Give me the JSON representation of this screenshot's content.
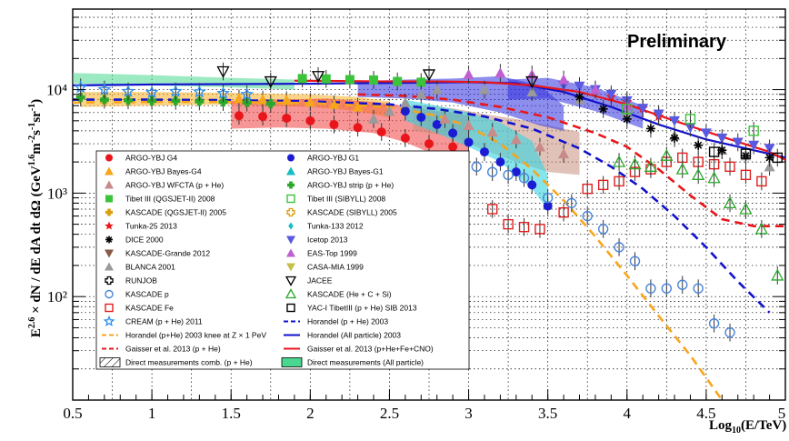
{
  "chart_data": {
    "type": "scatter",
    "annotation": "Preliminary",
    "xlabel": "Log10(E/TeV)",
    "ylabel": "E^2.6 × dN/dE dA dt dΩ (GeV^1.6 m^-2 s^-1 sr^-1)",
    "xlim": [
      0.5,
      5.0
    ],
    "ylim": [
      10,
      60000
    ],
    "yscale": "log",
    "x_ticks": [
      "0.5",
      "1",
      "1.5",
      "2",
      "2.5",
      "3",
      "3.5",
      "4",
      "4.5",
      "5"
    ],
    "y_ticks": [
      "10²",
      "10³",
      "10⁴"
    ],
    "grid": true,
    "legend_position": "lower-left",
    "colors": {
      "red": "#e8161b",
      "orange": "#f7a51c",
      "rosy": "#c98a8a",
      "green": "#3bc43b",
      "blue": "#1b1bd6",
      "cyan": "#17bcc4",
      "skyblue": "#2a8ff0",
      "violet": "#5a5ae0",
      "magenta": "#c060d0",
      "khaki": "#c6c04a",
      "brown": "#8a5a4a",
      "gray": "#9a9a9a",
      "mediumgreen": "#2aa82a",
      "openblue": "#4a84d8",
      "openred": "#e02020",
      "gold": "#d8a010",
      "navy": "#1111cc",
      "band_green": "#4ad890",
      "band_cyan": "#36d4e0",
      "band_brown": "#c89080",
      "band_red": "#f04040",
      "band_orange": "#f7b027",
      "band_blue": "#3030e0"
    },
    "legend": [
      {
        "label": "ARGO-YBJ G4",
        "color": "red",
        "marker": "circle"
      },
      {
        "label": "ARGO-YBJ G1",
        "color": "blue",
        "marker": "circle"
      },
      {
        "label": "ARGO-YBJ Bayes-G4",
        "color": "orange",
        "marker": "triangle"
      },
      {
        "label": "ARGO-YBJ Bayes-G1",
        "color": "cyan",
        "marker": "triangle"
      },
      {
        "label": "ARGO-YBJ WFCTA (p + He)",
        "color": "rosy",
        "marker": "triangle"
      },
      {
        "label": "ARGO-YBJ strip (p + He)",
        "color": "mediumgreen",
        "marker": "cross"
      },
      {
        "label": "Tibet III (QGSJET-II) 2008",
        "color": "green",
        "marker": "square"
      },
      {
        "label": "Tibet III (SIBYLL) 2008",
        "color": "green",
        "marker": "open-square"
      },
      {
        "label": "KASCADE (QGSJET-II) 2005",
        "color": "gold",
        "marker": "cross"
      },
      {
        "label": "KASCADE (SIBYLL) 2005",
        "color": "gold",
        "marker": "open-cross"
      },
      {
        "label": "Tunka-25 2013",
        "color": "red",
        "marker": "star"
      },
      {
        "label": "Tunka-133 2012",
        "color": "cyan",
        "marker": "diamond"
      },
      {
        "label": "DICE 2000",
        "color": "black",
        "marker": "asterisk"
      },
      {
        "label": "Icetop 2013",
        "color": "violet",
        "marker": "triangle-down"
      },
      {
        "label": "KASCADE-Grande 2012",
        "color": "brown",
        "marker": "triangle-down"
      },
      {
        "label": "EAS-Top 1999",
        "color": "magenta",
        "marker": "triangle"
      },
      {
        "label": "BLANCA 2001",
        "color": "gray",
        "marker": "triangle"
      },
      {
        "label": "CASA-MIA 1999",
        "color": "khaki",
        "marker": "triangle-down"
      },
      {
        "label": "RUNJOB",
        "color": "black",
        "marker": "open-cross"
      },
      {
        "label": "JACEE",
        "color": "black",
        "marker": "open-triangle-down"
      },
      {
        "label": "KASCADE p",
        "color": "openblue",
        "marker": "open-circle"
      },
      {
        "label": "KASCADE (He + C + Si)",
        "color": "mediumgreen",
        "marker": "open-triangle"
      },
      {
        "label": "KASCADE Fe",
        "color": "openred",
        "marker": "open-square"
      },
      {
        "label": "YAC-I TibetIII (p + He) SIB 2013",
        "color": "black",
        "marker": "open-square"
      },
      {
        "label": "CREAM (p + He) 2011",
        "color": "skyblue",
        "marker": "open-star"
      },
      {
        "label": "Horandel (p + He) 2003",
        "color": "navy",
        "marker": "dash"
      },
      {
        "label": "Horandel (p+He) 2003 knee at Z × 1 PeV",
        "color": "orange",
        "marker": "dash"
      },
      {
        "label": "Horandel (All particle) 2003",
        "color": "navy",
        "marker": "line"
      },
      {
        "label": "Gaisser et al. 2013 (p + He)",
        "color": "red",
        "marker": "dash"
      },
      {
        "label": "Gaisser et al. 2013 (p+He+Fe+CNO)",
        "color": "red",
        "marker": "line"
      },
      {
        "label": "Direct measurements comb. (p + He)",
        "color": "black",
        "marker": "hatch"
      },
      {
        "label": "Direct measurements (All particle)",
        "color": "band_green",
        "marker": "band"
      }
    ],
    "bands": [
      {
        "name": "Direct measurements (All particle)",
        "color": "band_green",
        "opacity": 0.55,
        "x": [
          0.5,
          1.0,
          1.5,
          1.9
        ],
        "lo": [
          11500,
          11000,
          10500,
          10000
        ],
        "hi": [
          14500,
          13800,
          13000,
          12500
        ]
      },
      {
        "color": "band_orange",
        "opacity": 0.55,
        "x": [
          0.55,
          1.0,
          1.5,
          2.0,
          2.3,
          2.5
        ],
        "lo": [
          6800,
          7000,
          7200,
          6800,
          6200,
          5400
        ],
        "hi": [
          9500,
          9500,
          9300,
          9000,
          8500,
          7700
        ]
      },
      {
        "color": "band_red",
        "opacity": 0.55,
        "x": [
          1.5,
          1.8,
          2.1,
          2.4,
          2.6,
          2.8,
          3.0
        ],
        "lo": [
          4200,
          4300,
          4200,
          3800,
          3100,
          2300,
          2050
        ],
        "hi": [
          7800,
          8000,
          8200,
          7600,
          7000,
          6200,
          5600
        ]
      },
      {
        "color": "band_brown",
        "opacity": 0.55,
        "x": [
          2.65,
          2.9,
          3.1,
          3.3,
          3.5,
          3.7
        ],
        "lo": [
          4000,
          3500,
          2600,
          2000,
          1600,
          1500
        ],
        "hi": [
          7200,
          6600,
          5800,
          5200,
          4500,
          3900
        ]
      },
      {
        "color": "band_cyan",
        "opacity": 0.6,
        "x": [
          2.6,
          2.8,
          3.0,
          3.2,
          3.4,
          3.5
        ],
        "lo": [
          5000,
          3800,
          2800,
          2000,
          1100,
          700
        ],
        "hi": [
          8000,
          7000,
          6000,
          4800,
          3200,
          1500
        ]
      },
      {
        "color": "band_blue",
        "opacity": 0.55,
        "x": [
          2.3,
          2.6,
          2.9,
          3.2,
          3.45,
          3.6
        ],
        "lo": [
          8500,
          8200,
          7500,
          6000,
          4500,
          4000
        ],
        "hi": [
          12000,
          12500,
          12800,
          13500,
          11000,
          7000
        ]
      },
      {
        "color": "band_blue",
        "opacity": 0.55,
        "x": [
          3.25,
          3.5,
          3.8,
          4.1
        ],
        "lo": [
          8000,
          8200,
          6200,
          4200
        ],
        "hi": [
          12500,
          13000,
          10500,
          7000
        ]
      }
    ],
    "curves": [
      {
        "name": "Horandel (All particle) 2003",
        "color": "navy",
        "dash": false,
        "x": [
          0.5,
          1.0,
          1.5,
          2.0,
          2.5,
          3.0,
          3.3,
          3.6,
          3.9,
          4.2,
          4.5,
          4.8,
          5.0
        ],
        "y": [
          11000,
          11200,
          11300,
          11400,
          11600,
          11800,
          11500,
          9500,
          6800,
          4600,
          3300,
          2600,
          2200
        ]
      },
      {
        "name": "Gaisser et al. 2013 (p+He+Fe+CNO)",
        "color": "red",
        "dash": false,
        "x": [
          1.9,
          2.2,
          2.5,
          2.8,
          3.1,
          3.4,
          3.7,
          4.0,
          4.3,
          4.6,
          4.9,
          5.0
        ],
        "y": [
          12200,
          12100,
          12000,
          12000,
          11800,
          11000,
          9500,
          7200,
          5000,
          3500,
          2500,
          2100
        ]
      },
      {
        "name": "Horandel (p + He) 2003",
        "color": "navy",
        "dash": true,
        "x": [
          0.5,
          1.0,
          1.5,
          2.0,
          2.5,
          2.8,
          3.1,
          3.4,
          3.7,
          3.9,
          4.1,
          4.3,
          4.5,
          4.7,
          4.9
        ],
        "y": [
          8000,
          8000,
          7900,
          7700,
          7200,
          6500,
          5500,
          4200,
          2700,
          1800,
          1100,
          600,
          300,
          140,
          70
        ]
      },
      {
        "name": "Horandel (p+He) 2003 knee at Z × 1 PeV",
        "color": "orange",
        "dash": true,
        "x": [
          0.5,
          1.0,
          1.5,
          2.0,
          2.5,
          2.8,
          3.0,
          3.2,
          3.4,
          3.6,
          3.8,
          4.0,
          4.2,
          4.4,
          4.6
        ],
        "y": [
          7500,
          7600,
          7600,
          7400,
          6800,
          5600,
          4400,
          3000,
          1700,
          850,
          380,
          160,
          65,
          27,
          10
        ]
      },
      {
        "name": "Gaisser et al. 2013 (p + He)",
        "color": "red",
        "dash": true,
        "x": [
          2.3,
          2.6,
          2.9,
          3.2,
          3.5,
          3.8,
          4.0,
          4.2,
          4.4,
          4.6,
          4.8,
          5.0
        ],
        "y": [
          9000,
          8700,
          8000,
          6800,
          5400,
          3800,
          2800,
          1700,
          950,
          560,
          480,
          480
        ]
      }
    ],
    "series": [
      {
        "name": "ARGO-YBJ G4",
        "marker": "circle",
        "color": "red",
        "x": [
          1.55,
          1.7,
          1.85,
          2.0,
          2.15,
          2.3,
          2.45,
          2.6,
          2.75,
          2.9
        ],
        "y": [
          5600,
          5500,
          5300,
          5000,
          4600,
          4300,
          3900,
          3400,
          3000,
          2800
        ]
      },
      {
        "name": "ARGO-YBJ G1",
        "marker": "circle",
        "color": "blue",
        "x": [
          2.6,
          2.7,
          2.8,
          2.9,
          3.0,
          3.1,
          3.2,
          3.3,
          3.4,
          3.5
        ],
        "y": [
          6200,
          5400,
          4600,
          3800,
          3100,
          2500,
          2000,
          1600,
          1200,
          750
        ]
      },
      {
        "name": "ARGO-YBJ Bayes-G4",
        "marker": "triangle",
        "color": "orange",
        "x": [
          1.55,
          1.7,
          1.85,
          2.0,
          2.15,
          2.3
        ],
        "y": [
          8200,
          8000,
          7900,
          7600,
          7200,
          6800
        ]
      },
      {
        "name": "ARGO-YBJ WFCTA (p + He)",
        "marker": "triangle",
        "color": "rosy",
        "x": [
          2.85,
          3.0,
          3.15,
          3.3,
          3.45,
          3.6
        ],
        "y": [
          5200,
          4500,
          3900,
          3300,
          2800,
          2400
        ]
      },
      {
        "name": "ARGO-YBJ strip (p + He)",
        "marker": "cross",
        "color": "mediumgreen",
        "x": [
          0.55,
          0.7,
          0.85,
          1.0,
          1.15,
          1.3,
          1.45,
          1.6,
          1.75
        ],
        "y": [
          8400,
          8000,
          7900,
          7800,
          7800,
          7700,
          7600,
          7500,
          7300
        ]
      },
      {
        "name": "Tibet III",
        "marker": "square",
        "color": "green",
        "x": [
          1.95,
          2.1,
          2.25,
          2.4,
          2.55,
          2.7
        ],
        "y": [
          12800,
          12700,
          12500,
          12400,
          12000,
          11800
        ]
      },
      {
        "name": "Tunka-25 2013",
        "marker": "star",
        "color": "red",
        "x": [
          3.9,
          4.0,
          4.1,
          4.2
        ],
        "y": [
          8500,
          7600,
          6600,
          5500
        ]
      },
      {
        "name": "Icetop 2013",
        "marker": "triangle-down",
        "color": "violet",
        "x": [
          3.6,
          3.7,
          3.8,
          3.9,
          4.0,
          4.1,
          4.2,
          4.3,
          4.4,
          4.5,
          4.6,
          4.7,
          4.8,
          4.9
        ],
        "y": [
          11000,
          10800,
          10000,
          9000,
          7800,
          6600,
          5800,
          5000,
          4300,
          3800,
          3400,
          3100,
          2900,
          2700
        ]
      },
      {
        "name": "EAS-Top 1999",
        "marker": "triangle",
        "color": "magenta",
        "x": [
          3.0,
          3.2,
          3.4,
          3.6,
          3.8,
          4.0
        ],
        "y": [
          14000,
          14500,
          14000,
          12500,
          10000,
          7000
        ]
      },
      {
        "name": "BLANCA 2001",
        "marker": "triangle",
        "color": "gray",
        "x": [
          2.4,
          2.5,
          2.6,
          2.7,
          2.8,
          3.1,
          3.4,
          3.7,
          4.0,
          4.3,
          4.6,
          4.75,
          4.9
        ],
        "y": [
          5200,
          6200,
          7500,
          9000,
          10000,
          10000,
          9500,
          8000,
          6000,
          3600,
          2600,
          2300,
          1800
        ]
      },
      {
        "name": "DICE 2000",
        "marker": "asterisk",
        "color": "black",
        "x": [
          3.7,
          3.85,
          4.0,
          4.15,
          4.3,
          4.45,
          4.6,
          4.75,
          4.9
        ],
        "y": [
          8500,
          6500,
          5200,
          4200,
          3400,
          2900,
          2600,
          2300,
          2200
        ]
      },
      {
        "name": "CREAM (p + He) 2011",
        "marker": "open-star",
        "color": "skyblue",
        "x": [
          0.55,
          0.7,
          0.85,
          1.0,
          1.15,
          1.3,
          1.45,
          1.6
        ],
        "y": [
          10500,
          10000,
          9600,
          9400,
          9600,
          9500,
          9200,
          9000
        ]
      },
      {
        "name": "KASCADE p",
        "marker": "open-circle",
        "color": "openblue",
        "x": [
          3.05,
          3.15,
          3.25,
          3.35,
          3.5,
          3.65,
          3.75,
          3.85,
          3.95,
          4.05,
          4.15,
          4.25,
          4.35,
          4.45,
          4.55,
          4.65
        ],
        "y": [
          1800,
          1600,
          1500,
          1400,
          900,
          800,
          600,
          450,
          300,
          220,
          120,
          120,
          130,
          120,
          55,
          45
        ]
      },
      {
        "name": "KASCADE Fe",
        "marker": "open-square",
        "color": "openred",
        "x": [
          3.15,
          3.25,
          3.35,
          3.45,
          3.6,
          3.75,
          3.85,
          3.95,
          4.05,
          4.15,
          4.25,
          4.35,
          4.45,
          4.55,
          4.65,
          4.75,
          4.85
        ],
        "y": [
          700,
          500,
          470,
          450,
          650,
          1100,
          1200,
          1300,
          1600,
          1700,
          2000,
          2200,
          2000,
          1900,
          1800,
          1500,
          1300
        ]
      },
      {
        "name": "KASCADE (He + C + Si)",
        "marker": "open-triangle",
        "color": "mediumgreen",
        "x": [
          3.95,
          4.05,
          4.15,
          4.25,
          4.35,
          4.45,
          4.55,
          4.65,
          4.75,
          4.85,
          4.95
        ],
        "y": [
          2000,
          1900,
          1800,
          2300,
          1700,
          1500,
          1400,
          800,
          700,
          450,
          160
        ]
      },
      {
        "name": "YAC-I TibetIII (p + He) SIB 2013",
        "marker": "open-square",
        "color": "black",
        "x": [
          4.55,
          4.75,
          4.95
        ],
        "y": [
          2500,
          2400,
          2200
        ]
      },
      {
        "name": "JACEE",
        "marker": "open-triangle-down",
        "color": "black",
        "x": [
          1.45,
          1.75,
          2.05,
          2.75,
          3.4
        ],
        "y": [
          15000,
          12000,
          13500,
          14000,
          12000
        ]
      },
      {
        "name": "Tibet III (SIBYLL) 2008",
        "marker": "open-square",
        "color": "green",
        "x": [
          4.0,
          4.4,
          4.8
        ],
        "y": [
          6500,
          5200,
          4000
        ]
      }
    ]
  }
}
